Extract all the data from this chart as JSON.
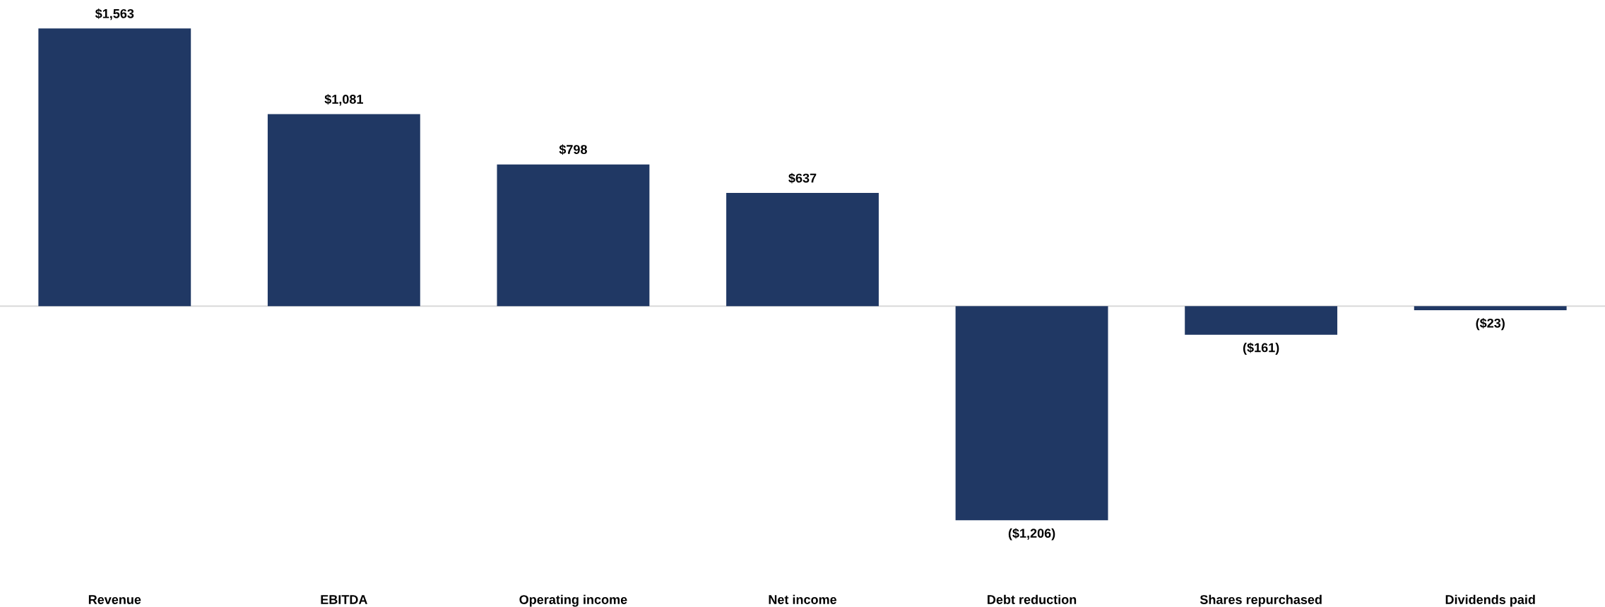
{
  "chart_data": {
    "type": "bar",
    "categories": [
      "Revenue",
      "EBITDA",
      "Operating income",
      "Net income",
      "Debt reduction",
      "Shares repurchased",
      "Dividends paid"
    ],
    "values": [
      1563,
      1081,
      798,
      637,
      -1206,
      -161,
      -23
    ],
    "value_labels": [
      "$1,563",
      "$1,081",
      "$798",
      "$637",
      "($1,206)",
      "($161)",
      "($23)"
    ],
    "color": "#203864",
    "grid": false,
    "legend": false,
    "tick_labels": "x"
  }
}
